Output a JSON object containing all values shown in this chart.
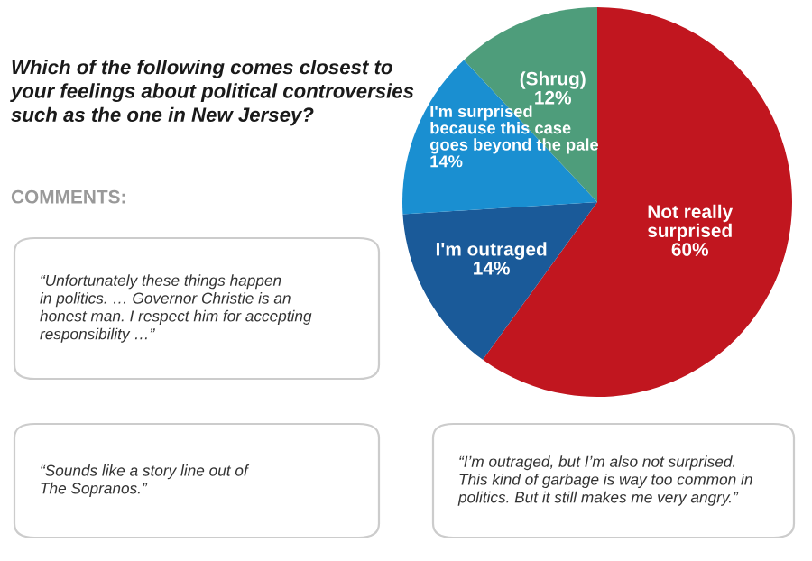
{
  "chart_data": {
    "type": "pie",
    "title": "Which of the following comes closest to\nyour feelings about political controversies\nsuch as the one in New Jersey?",
    "subtitle": "COMMENTS:",
    "categories": [
      "Not really\nsurprised",
      "I'm outraged",
      "I'm surprised\nbecause this case\ngoes beyond the pale",
      "(Shrug)"
    ],
    "values": [
      60,
      14,
      14,
      12
    ],
    "value_labels": [
      "60%",
      "14%",
      "14%",
      "12%"
    ],
    "colors": [
      "#c1161f",
      "#1a5a99",
      "#1a8fd1",
      "#4e9d7b"
    ],
    "annotations": [
      "“Unfortunately these things happen\nin politics. … Governor Christie is an\nhonest man. I respect him for accepting\nresponsibility …”",
      "“Sounds like a story line out of\nThe Sopranos.”",
      "“I’m outraged, but I’m also not surprised.\nThis kind of garbage is way too common in\npolitics. But it still makes me very angry.”"
    ],
    "legend": false
  }
}
